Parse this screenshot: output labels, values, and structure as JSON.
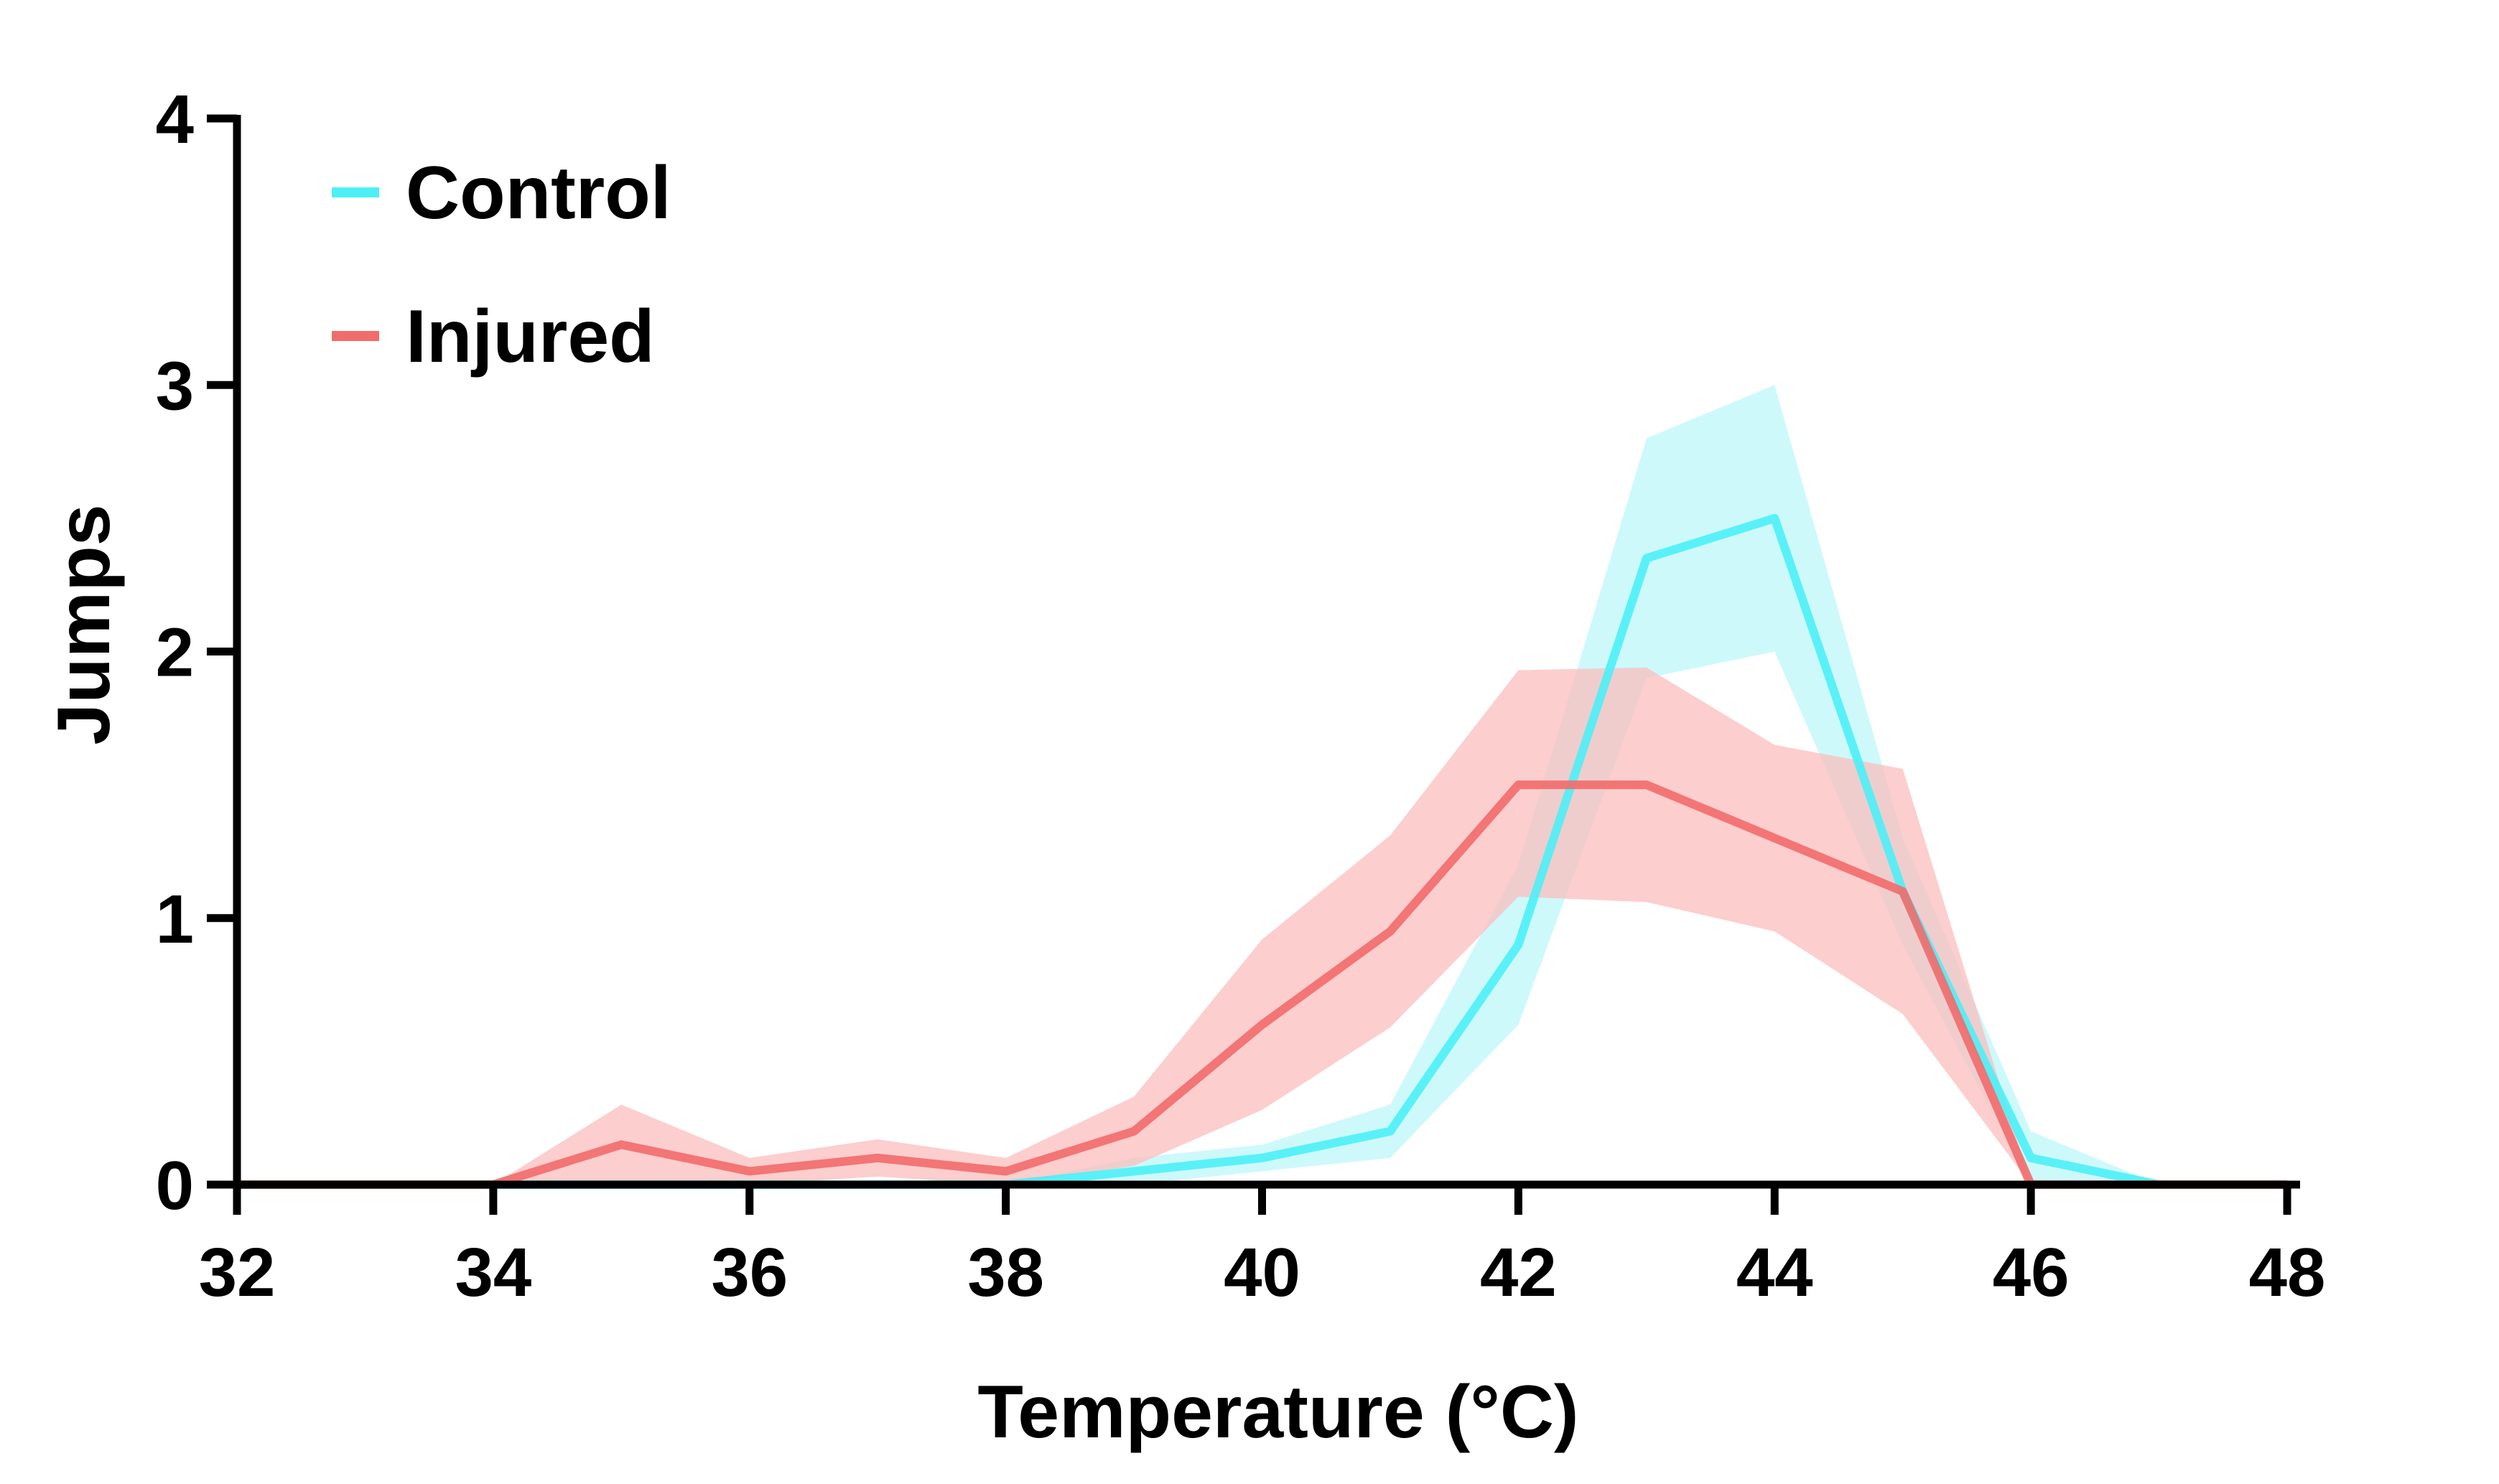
{
  "chart_data": {
    "type": "line",
    "xlabel": "Temperature (°C)",
    "ylabel": "Jumps",
    "xlim": [
      32,
      48
    ],
    "ylim": [
      0,
      4
    ],
    "x_ticks": [
      32,
      34,
      36,
      38,
      40,
      42,
      44,
      46,
      48
    ],
    "y_ticks": [
      0,
      1,
      2,
      3,
      4
    ],
    "legend_position": "top-left",
    "series": [
      {
        "name": "Control",
        "color": "#4DEFF7",
        "band_color": "#BDF7FA",
        "x": [
          32,
          33,
          34,
          35,
          36,
          37,
          38,
          39,
          40,
          41,
          42,
          43,
          44,
          45,
          46,
          47,
          48
        ],
        "y": [
          0,
          0,
          0,
          0,
          0,
          0,
          0,
          0.05,
          0.1,
          0.2,
          0.9,
          2.35,
          2.5,
          1.1,
          0.1,
          0,
          0
        ],
        "upper": [
          0,
          0,
          0,
          0,
          0,
          0,
          0,
          0.1,
          0.15,
          0.3,
          1.2,
          2.8,
          3.0,
          1.3,
          0.2,
          0,
          0
        ],
        "lower": [
          0,
          0,
          0,
          0,
          0,
          0,
          0,
          0.0,
          0.05,
          0.1,
          0.6,
          1.9,
          2.0,
          0.9,
          0.0,
          0,
          0
        ]
      },
      {
        "name": "Injured",
        "color": "#F26B6B",
        "band_color": "#FBBEBE",
        "x": [
          32,
          33,
          34,
          35,
          36,
          37,
          38,
          39,
          40,
          41,
          42,
          43,
          44,
          45,
          46,
          47,
          48
        ],
        "y": [
          0,
          0,
          0,
          0.15,
          0.05,
          0.1,
          0.05,
          0.2,
          0.6,
          0.95,
          1.5,
          1.5,
          1.3,
          1.1,
          0,
          0,
          0
        ],
        "upper": [
          0,
          0,
          0,
          0.3,
          0.1,
          0.17,
          0.1,
          0.33,
          0.92,
          1.31,
          1.93,
          1.94,
          1.65,
          1.56,
          0,
          0,
          0
        ],
        "lower": [
          0,
          0,
          0,
          0.0,
          0.0,
          0.03,
          0.0,
          0.07,
          0.28,
          0.59,
          1.08,
          1.06,
          0.95,
          0.64,
          0,
          0,
          0
        ]
      }
    ]
  }
}
